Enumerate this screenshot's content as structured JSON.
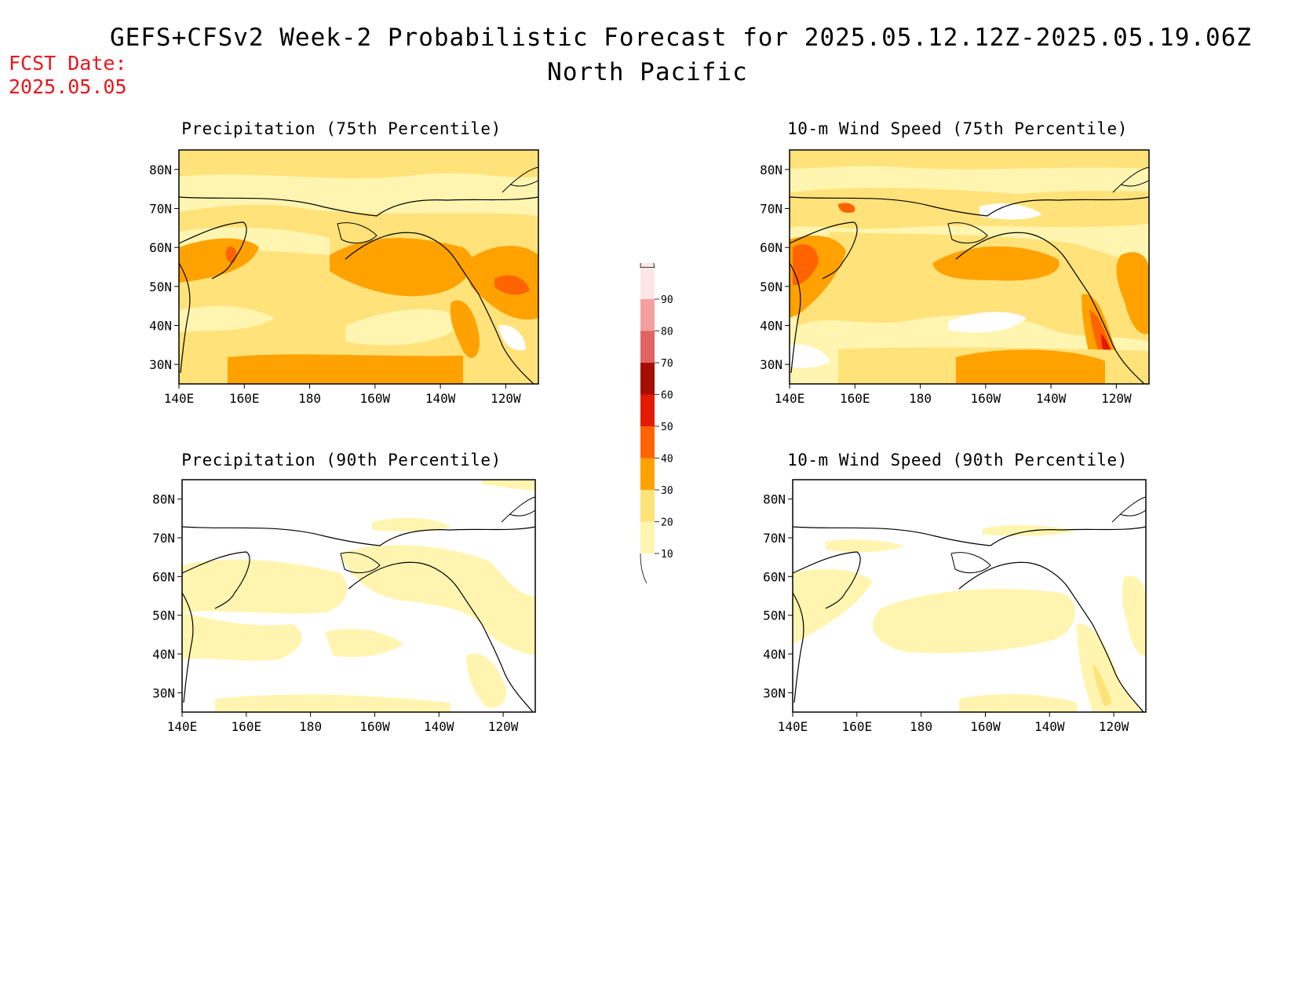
{
  "header": {
    "title_line1": "GEFS+CFSv2 Week-2 Probabilistic Forecast for 2025.05.12.12Z-2025.05.19.06Z",
    "title_line2": "North Pacific",
    "fcst_label": "FCST Date:",
    "fcst_date": "2025.05.05"
  },
  "panels": [
    {
      "id": "p1",
      "title": "Precipitation (75th Percentile)"
    },
    {
      "id": "p2",
      "title": "10-m Wind Speed (75th Percentile)"
    },
    {
      "id": "p3",
      "title": "Precipitation (90th Percentile)"
    },
    {
      "id": "p4",
      "title": "10-m Wind Speed (90th Percentile)"
    }
  ],
  "axes": {
    "lon_ticks": [
      "140E",
      "160E",
      "180",
      "160W",
      "140W",
      "120W"
    ],
    "lat_ticks": [
      "80N",
      "70N",
      "60N",
      "50N",
      "40N",
      "30N"
    ]
  },
  "colorbar": {
    "levels": [
      "10",
      "20",
      "30",
      "40",
      "50",
      "60",
      "70",
      "80",
      "90"
    ],
    "colors": [
      "#fff5b0",
      "#ffe27a",
      "#ffa200",
      "#ff6400",
      "#e21a00",
      "#a50e00",
      "#e06464",
      "#f5a0a0",
      "#fde6e6"
    ]
  }
}
